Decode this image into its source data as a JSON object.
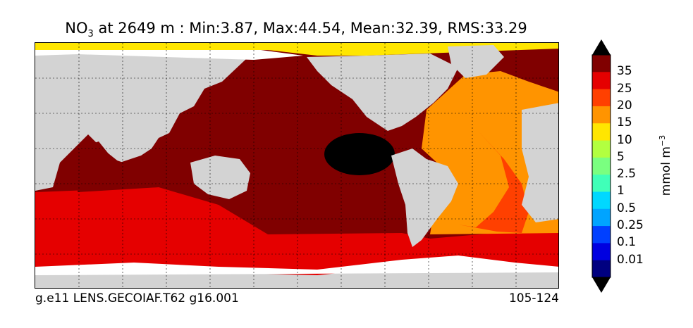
{
  "title": {
    "species_base": "NO",
    "species_sub": "3",
    "rest": " at 2649 m : Min:3.87, Max:44.54, Mean:32.39, RMS:33.29"
  },
  "footer": {
    "left": "g.e11 LENS.GECOIAF.T62 g16.001",
    "right": "105-124"
  },
  "colorbar": {
    "units_base": "mmol m",
    "units_exp": "−3",
    "labels": [
      "35",
      "25",
      "20",
      "15",
      "10",
      "5",
      "2.5",
      "1",
      "0.5",
      "0.25",
      "0.1",
      "0.01"
    ],
    "colors_top_to_bottom": [
      "#800000",
      "#e50000",
      "#ff4000",
      "#ff9400",
      "#ffe600",
      "#b2ff40",
      "#7aff80",
      "#40ffb8",
      "#00d8ff",
      "#00a4ff",
      "#0040ff",
      "#0000e0",
      "#000080"
    ],
    "over_color": "#000000",
    "under_color": "#000000"
  },
  "map": {
    "land_color": "#d3d3d3",
    "missing_color": "#ffffff",
    "min_region_color": "#000000"
  }
}
